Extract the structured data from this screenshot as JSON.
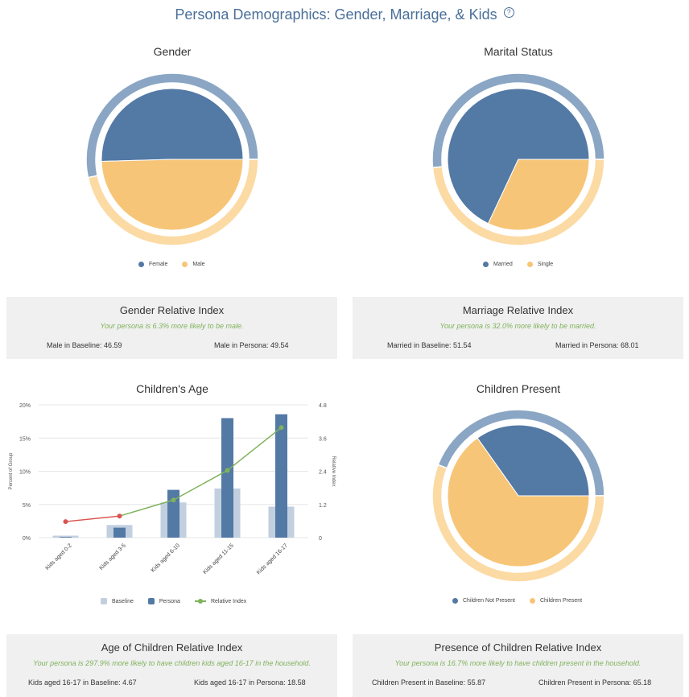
{
  "header": {
    "title": "Persona Demographics: Gender, Marriage, & Kids",
    "help_icon": "?"
  },
  "colors": {
    "blue": "#5379a5",
    "blue_ring": "#8aa6c4",
    "orange": "#f7c577",
    "orange_ring": "#fcdaa4",
    "baseline_bar": "#c2cfdf",
    "green": "#7fb25b",
    "red": "#d9534f"
  },
  "chart_data": [
    {
      "type": "pie",
      "title": "Gender",
      "legend": [
        "Female",
        "Male"
      ],
      "series": [
        {
          "name": "Persona",
          "values": [
            50.46,
            49.54
          ]
        },
        {
          "name": "Baseline",
          "values": [
            53.41,
            46.59
          ]
        }
      ]
    },
    {
      "type": "pie",
      "title": "Marital Status",
      "legend": [
        "Married",
        "Single"
      ],
      "series": [
        {
          "name": "Persona",
          "values": [
            68.01,
            31.99
          ]
        },
        {
          "name": "Baseline",
          "values": [
            51.54,
            48.46
          ]
        }
      ]
    },
    {
      "type": "bar",
      "title": "Children's Age",
      "categories": [
        "Kids aged 0-2",
        "Kids aged 3-5",
        "Kids aged 6-10",
        "Kids aged 11-15",
        "Kids aged 16-17"
      ],
      "series": [
        {
          "name": "Baseline",
          "values": [
            0.3,
            1.9,
            5.3,
            7.4,
            4.67
          ]
        },
        {
          "name": "Persona",
          "values": [
            0.1,
            1.5,
            7.2,
            18.0,
            18.58
          ]
        },
        {
          "name": "Relative Index",
          "axis": "right",
          "values": [
            0.58,
            0.78,
            1.36,
            2.43,
            3.98
          ]
        }
      ],
      "ylabel": "Percent of Group",
      "y2label": "Relative Index",
      "ylim": [
        0,
        20
      ],
      "y2lim": [
        0,
        4.8
      ],
      "yticks": [
        "0%",
        "5%",
        "10%",
        "15%",
        "20%"
      ],
      "y2ticks": [
        "0",
        "1.2",
        "2.4",
        "3.6",
        "4.8"
      ]
    },
    {
      "type": "pie",
      "title": "Children Present",
      "legend": [
        "Children Not Present",
        "Children Present"
      ],
      "series": [
        {
          "name": "Persona",
          "values": [
            34.82,
            65.18
          ]
        },
        {
          "name": "Baseline",
          "values": [
            44.13,
            55.87
          ]
        }
      ]
    }
  ],
  "panels": [
    {
      "title": "Gender Relative Index",
      "note": "Your persona is 6.3% more likely to be male.",
      "left": "Male in Baseline: 46.59",
      "right": "Male in Persona: 49.54"
    },
    {
      "title": "Marriage Relative Index",
      "note": "Your persona is 32.0% more likely to be married.",
      "left": "Married in Baseline: 51.54",
      "right": "Married in Persona: 68.01"
    },
    {
      "title": "Age of Children Relative Index",
      "note": "Your persona is 297.9% more likely to have children kids aged 16-17 in the household.",
      "left": "Kids aged 16-17 in Baseline: 4.67",
      "right": "Kids aged 16-17 in Persona: 18.58"
    },
    {
      "title": "Presence of Children Relative Index",
      "note": "Your persona is 16.7% more likely to have children present in the household.",
      "left": "Children Present in Baseline: 55.87",
      "right": "Children Present in Persona: 65.18"
    }
  ]
}
